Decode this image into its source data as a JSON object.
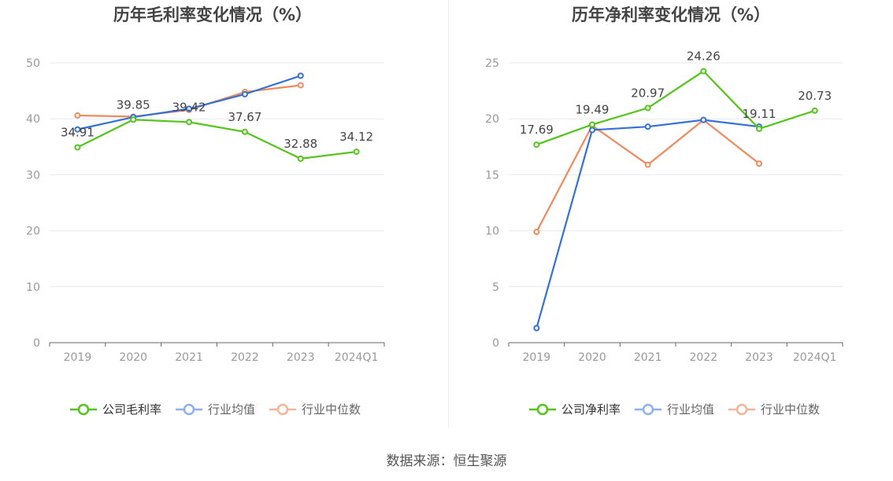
{
  "colors": {
    "company": "#52c41a",
    "industry_avg": "#3370db",
    "industry_median": "#f08a5d",
    "legend_avg": "#8fb0f0",
    "legend_median": "#f7b49a",
    "title": "#444444",
    "axis_text": "#999999",
    "grid": "#e6e9ef",
    "label": "#444444"
  },
  "source_text": "数据来源：恒生聚源",
  "chart_data": [
    {
      "type": "line",
      "title": "历年毛利率变化情况（%）",
      "x": [
        "2019",
        "2020",
        "2021",
        "2022",
        "2023",
        "2024Q1"
      ],
      "yticks": [
        0,
        10,
        20,
        30,
        40,
        50
      ],
      "ylim": [
        0,
        50
      ],
      "grid": true,
      "legend_position": "bottom",
      "legend": [
        "公司毛利率",
        "行业均值",
        "行业中位数"
      ],
      "series": [
        {
          "name": "公司毛利率",
          "values": [
            34.91,
            39.85,
            39.42,
            37.67,
            32.88,
            34.12
          ],
          "labels": [
            "34.91",
            "39.85",
            "39.42",
            "37.67",
            "32.88",
            "34.12"
          ]
        },
        {
          "name": "行业均值",
          "values": [
            38.1,
            40.3,
            41.8,
            44.4,
            47.7,
            null
          ]
        },
        {
          "name": "行业中位数",
          "values": [
            40.6,
            40.4,
            41.6,
            44.8,
            46.0,
            null
          ]
        }
      ]
    },
    {
      "type": "line",
      "title": "历年净利率变化情况（%）",
      "x": [
        "2019",
        "2020",
        "2021",
        "2022",
        "2023",
        "2024Q1"
      ],
      "yticks": [
        0,
        5,
        10,
        15,
        20,
        25
      ],
      "ylim": [
        0,
        25
      ],
      "grid": true,
      "legend_position": "bottom",
      "legend": [
        "公司净利率",
        "行业均值",
        "行业中位数"
      ],
      "series": [
        {
          "name": "公司净利率",
          "values": [
            17.69,
            19.49,
            20.97,
            24.26,
            19.11,
            20.73
          ],
          "labels": [
            "17.69",
            "19.49",
            "20.97",
            "24.26",
            "19.11",
            "20.73"
          ]
        },
        {
          "name": "行业均值",
          "values": [
            1.3,
            19.0,
            19.3,
            19.9,
            19.3,
            null
          ]
        },
        {
          "name": "行业中位数",
          "values": [
            9.9,
            19.4,
            15.9,
            19.9,
            16.0,
            null
          ]
        }
      ]
    }
  ]
}
